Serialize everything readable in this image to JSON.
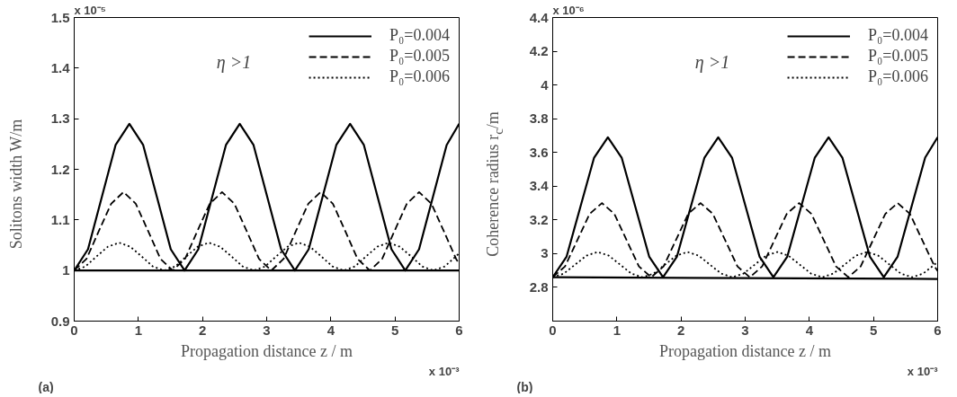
{
  "chart_data": [
    {
      "type": "line",
      "xlabel": "Propagation distance z / m",
      "ylabel": "Solitons width W/m",
      "xlim": [
        0,
        6
      ],
      "xticks": [
        0,
        1,
        2,
        3,
        4,
        5,
        6
      ],
      "ylim": [
        0.9,
        1.5
      ],
      "yticks": [
        0.9,
        1,
        1.1,
        1.2,
        1.3,
        1.4,
        1.5
      ],
      "grid": false,
      "legend": "top right",
      "annotations": [
        "η >1",
        "(a)",
        "x 10⁻⁵",
        "x 10⁻³"
      ],
      "series": [
        {
          "name": "P₀=0.004",
          "color": "#000000",
          "line_style": "solid",
          "x": [
            0,
            0.215,
            0.43,
            0.645,
            0.86,
            1.075,
            1.29,
            1.505,
            1.72,
            1.935,
            2.15,
            2.365,
            2.58,
            2.795,
            3.01,
            3.225,
            3.44,
            3.655,
            3.87,
            4.085,
            4.3,
            4.515,
            4.73,
            4.945,
            5.16,
            5.375,
            5.59,
            5.805,
            6.0
          ],
          "values": [
            1.0,
            1.042,
            1.145,
            1.248,
            1.29,
            1.248,
            1.145,
            1.042,
            1.0,
            1.042,
            1.145,
            1.248,
            1.29,
            1.248,
            1.145,
            1.042,
            1.0,
            1.042,
            1.145,
            1.248,
            1.29,
            1.248,
            1.145,
            1.042,
            1.0,
            1.042,
            1.145,
            1.248,
            1.29
          ]
        },
        {
          "name": "P₀=0.005",
          "color": "#000000",
          "line_style": "dashed",
          "x": [
            0,
            0.192,
            0.384,
            0.576,
            0.768,
            0.96,
            1.152,
            1.344,
            1.536,
            1.728,
            1.92,
            2.112,
            2.304,
            2.496,
            2.688,
            2.88,
            3.072,
            3.264,
            3.456,
            3.648,
            3.84,
            4.032,
            4.224,
            4.416,
            4.608,
            4.8,
            4.992,
            5.184,
            5.376,
            5.568,
            5.76,
            5.952,
            6.0
          ],
          "values": [
            1.0,
            1.023,
            1.078,
            1.132,
            1.155,
            1.132,
            1.078,
            1.023,
            1.0,
            1.023,
            1.078,
            1.132,
            1.155,
            1.132,
            1.078,
            1.023,
            1.0,
            1.023,
            1.078,
            1.132,
            1.155,
            1.132,
            1.078,
            1.023,
            1.0,
            1.023,
            1.078,
            1.132,
            1.155,
            1.132,
            1.078,
            1.023,
            1.013
          ]
        },
        {
          "name": "P₀=0.006",
          "color": "#000000",
          "line_style": "dotted",
          "x": [
            0,
            0.175,
            0.35,
            0.525,
            0.7,
            0.875,
            1.05,
            1.225,
            1.4,
            1.575,
            1.75,
            1.925,
            2.1,
            2.275,
            2.45,
            2.625,
            2.8,
            2.975,
            3.15,
            3.325,
            3.5,
            3.675,
            3.85,
            4.025,
            4.2,
            4.375,
            4.55,
            4.725,
            4.9,
            5.075,
            5.25,
            5.425,
            5.6,
            5.775,
            5.95,
            6.0
          ],
          "values": [
            1.0,
            1.008,
            1.028,
            1.047,
            1.055,
            1.047,
            1.028,
            1.008,
            1.0,
            1.008,
            1.028,
            1.047,
            1.055,
            1.047,
            1.028,
            1.008,
            1.0,
            1.008,
            1.028,
            1.047,
            1.055,
            1.047,
            1.028,
            1.008,
            1.0,
            1.008,
            1.028,
            1.047,
            1.055,
            1.047,
            1.028,
            1.008,
            1.0,
            1.008,
            1.028,
            1.034
          ]
        },
        {
          "color": "#000000",
          "line_style": "solid",
          "x": [
            0,
            6
          ],
          "values": [
            1.0,
            1.0
          ]
        }
      ]
    },
    {
      "type": "line",
      "xlabel": "Propagation distance z / m",
      "ylabel": "Coherence radius r$_{c}$/m",
      "xlim": [
        0,
        6
      ],
      "xticks": [
        0,
        1,
        2,
        3,
        4,
        5,
        6
      ],
      "ylim": [
        2.6,
        4.4
      ],
      "yticks": [
        {
          "value": 2.6,
          "label": null
        },
        2.8,
        3,
        3.2,
        3.4,
        3.6,
        3.8,
        4,
        4.2,
        4.4
      ],
      "grid": false,
      "legend": "top right",
      "annotations": [
        "η >1",
        "(b)",
        "x 10⁻⁶",
        "x 10⁻³"
      ],
      "series": [
        {
          "name": "P₀=0.004",
          "color": "#000000",
          "line_style": "solid",
          "x": [
            0,
            0.215,
            0.43,
            0.645,
            0.86,
            1.075,
            1.29,
            1.505,
            1.72,
            1.935,
            2.15,
            2.365,
            2.58,
            2.795,
            3.01,
            3.225,
            3.44,
            3.655,
            3.87,
            4.085,
            4.3,
            4.515,
            4.73,
            4.945,
            5.16,
            5.375,
            5.59,
            5.805,
            6.0
          ],
          "values": [
            2.86,
            2.981,
            3.275,
            3.569,
            3.69,
            3.569,
            3.275,
            2.981,
            2.86,
            2.981,
            3.275,
            3.569,
            3.69,
            3.569,
            3.275,
            2.981,
            2.86,
            2.981,
            3.275,
            3.569,
            3.69,
            3.569,
            3.275,
            2.981,
            2.86,
            2.981,
            3.275,
            3.569,
            3.69
          ]
        },
        {
          "name": "P₀=0.005",
          "color": "#000000",
          "line_style": "dashed",
          "x": [
            0,
            0.192,
            0.384,
            0.576,
            0.768,
            0.96,
            1.152,
            1.344,
            1.536,
            1.728,
            1.92,
            2.112,
            2.304,
            2.496,
            2.688,
            2.88,
            3.072,
            3.264,
            3.456,
            3.648,
            3.84,
            4.032,
            4.224,
            4.416,
            4.608,
            4.8,
            4.992,
            5.184,
            5.376,
            5.568,
            5.76,
            5.952,
            6.0
          ],
          "values": [
            2.86,
            2.924,
            3.08,
            3.236,
            3.3,
            3.236,
            3.08,
            2.924,
            2.86,
            2.924,
            3.08,
            3.236,
            3.3,
            3.236,
            3.08,
            2.924,
            2.86,
            2.924,
            3.08,
            3.236,
            3.3,
            3.236,
            3.08,
            2.924,
            2.86,
            2.924,
            3.08,
            3.236,
            3.3,
            3.236,
            3.08,
            2.924,
            2.897
          ]
        },
        {
          "name": "P₀=0.006",
          "color": "#000000",
          "line_style": "dotted",
          "x": [
            0,
            0.175,
            0.35,
            0.525,
            0.7,
            0.875,
            1.05,
            1.225,
            1.4,
            1.575,
            1.75,
            1.925,
            2.1,
            2.275,
            2.45,
            2.625,
            2.8,
            2.975,
            3.15,
            3.325,
            3.5,
            3.675,
            3.85,
            4.025,
            4.2,
            4.375,
            4.55,
            4.725,
            4.9,
            5.075,
            5.25,
            5.425,
            5.6,
            5.775,
            5.95,
            6.0
          ],
          "values": [
            2.86,
            2.882,
            2.935,
            2.988,
            3.01,
            2.988,
            2.935,
            2.882,
            2.86,
            2.882,
            2.935,
            2.988,
            3.01,
            2.988,
            2.935,
            2.882,
            2.86,
            2.882,
            2.935,
            2.988,
            3.01,
            2.988,
            2.935,
            2.882,
            2.86,
            2.882,
            2.935,
            2.988,
            3.01,
            2.988,
            2.935,
            2.882,
            2.86,
            2.882,
            2.935,
            2.952
          ]
        },
        {
          "color": "#000000",
          "line_style": "solid",
          "x": [
            0,
            6
          ],
          "values": [
            2.86,
            2.85
          ]
        }
      ]
    }
  ]
}
